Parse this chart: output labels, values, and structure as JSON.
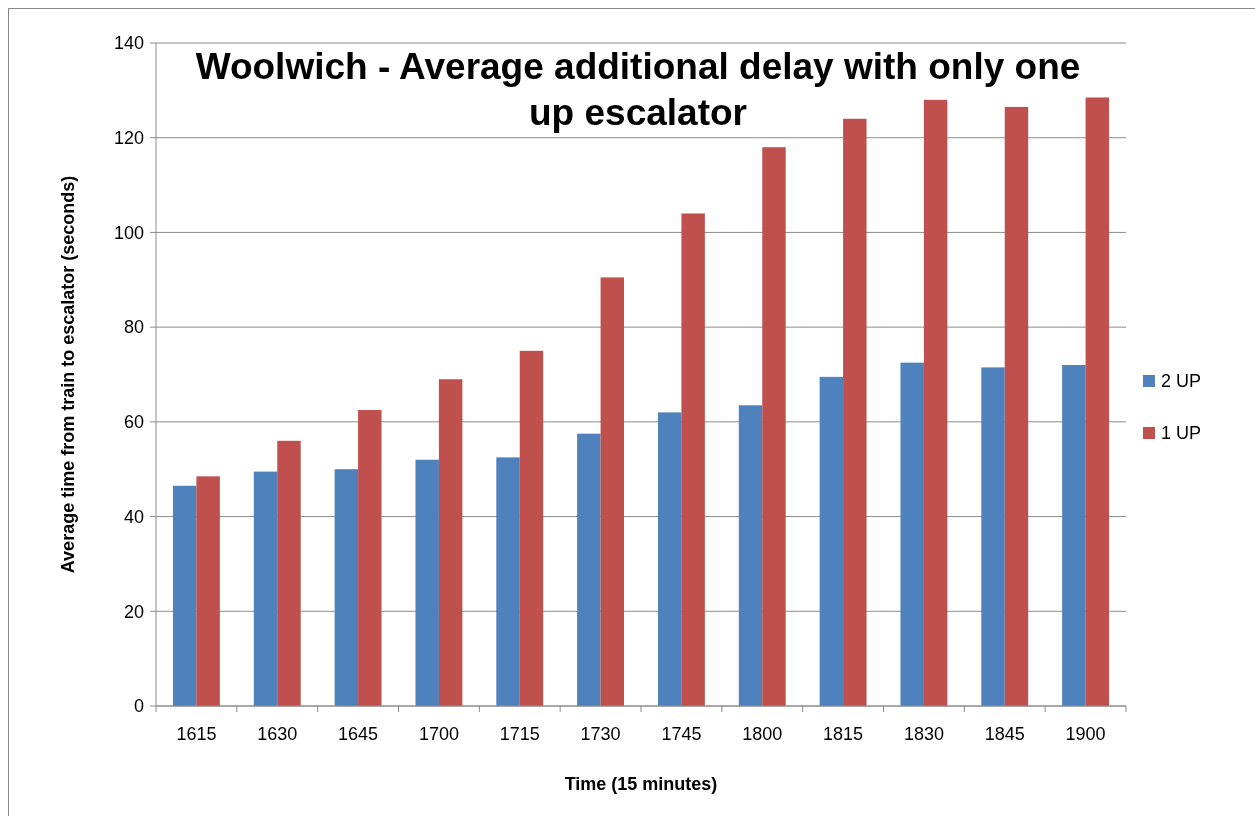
{
  "chart_data": {
    "type": "bar",
    "title": "Woolwich - Average additional delay with only one up escalator",
    "xlabel": "Time (15 minutes)",
    "ylabel": "Average time from train to escalator (seconds)",
    "categories": [
      "1615",
      "1630",
      "1645",
      "1700",
      "1715",
      "1730",
      "1745",
      "1800",
      "1815",
      "1830",
      "1845",
      "1900"
    ],
    "series": [
      {
        "name": "2 UP",
        "color": "#4f81bd",
        "values": [
          46.5,
          49.5,
          50,
          52,
          52.5,
          57.5,
          62,
          63.5,
          69.5,
          72.5,
          71.5,
          72
        ]
      },
      {
        "name": "1 UP",
        "color": "#c0504d",
        "values": [
          48.5,
          56,
          62.5,
          69,
          75,
          90.5,
          104,
          118,
          124,
          128,
          126.5,
          128.5
        ]
      }
    ],
    "ylim": [
      0,
      140
    ],
    "yticks": [
      0,
      20,
      40,
      60,
      80,
      100,
      120,
      140
    ],
    "grid": "y",
    "legend": "right"
  }
}
